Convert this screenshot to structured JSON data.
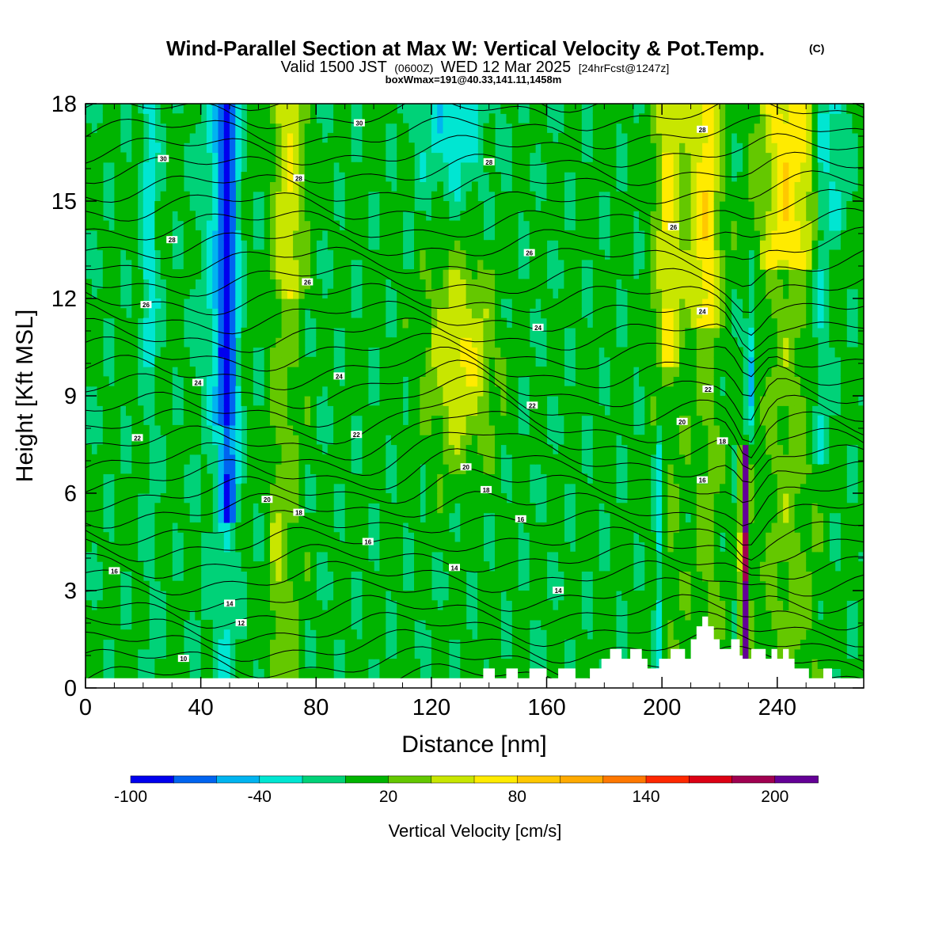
{
  "chart_data": {
    "type": "heatmap",
    "title": "Wind-Parallel Section at Max W: Vertical Velocity & Pot.Temp.",
    "title_mark": "(C)",
    "subtitle_parts": [
      "Valid 1500 JST",
      "(0600Z)",
      "WED 12 Mar 2025",
      "[24hrFcst@1247z]"
    ],
    "subtitle2": "boxWmax=191@40.33,141.11,1458m",
    "xlabel": "Distance [nm]",
    "ylabel": "Height [Kft MSL]",
    "xlim": [
      0,
      270
    ],
    "ylim": [
      0,
      18
    ],
    "x_ticks": [
      "0",
      "40",
      "80",
      "120",
      "160",
      "200",
      "240"
    ],
    "y_ticks": [
      "0",
      "3",
      "6",
      "9",
      "12",
      "15",
      "18"
    ],
    "colorbar": {
      "label": "Vertical Velocity [cm/s]",
      "tick_labels": [
        "-100",
        "-40",
        "20",
        "80",
        "140",
        "200"
      ],
      "tick_values": [
        -100,
        -40,
        20,
        80,
        140,
        200
      ],
      "levels": [
        -100,
        -80,
        -60,
        -40,
        -20,
        0,
        20,
        40,
        60,
        80,
        100,
        120,
        140,
        160,
        180,
        200,
        220
      ],
      "colors": [
        "#0000ee",
        "#0064f0",
        "#00b4f0",
        "#00e6d2",
        "#00d278",
        "#00b400",
        "#64c800",
        "#c8e600",
        "#ffeb00",
        "#ffc800",
        "#ffaa00",
        "#ff7800",
        "#ff2800",
        "#dc0014",
        "#a00050",
        "#640096"
      ]
    },
    "field": {
      "description_bands_x": [
        {
          "x": [
            46,
            54
          ],
          "value": -80
        },
        {
          "x": [
            40,
            46
          ],
          "value": -40
        },
        {
          "x": [
            66,
            76
          ],
          "value": 60
        },
        {
          "x": [
            120,
            140
          ],
          "value": 40
        },
        {
          "x": [
            198,
            208
          ],
          "value": 60
        },
        {
          "x": [
            210,
            222
          ],
          "value": 70
        },
        {
          "x": [
            228,
            230
          ],
          "value": 190
        },
        {
          "x": [
            232,
            256
          ],
          "value": 70
        }
      ]
    },
    "theta_contours": {
      "labels": [
        {
          "text": "10",
          "x": 34,
          "y": 0.9
        },
        {
          "text": "12",
          "x": 54,
          "y": 2.0
        },
        {
          "text": "14",
          "x": 50,
          "y": 2.6
        },
        {
          "text": "14",
          "x": 128,
          "y": 3.7
        },
        {
          "text": "14",
          "x": 164,
          "y": 3.0
        },
        {
          "text": "16",
          "x": 10,
          "y": 3.6
        },
        {
          "text": "16",
          "x": 98,
          "y": 4.5
        },
        {
          "text": "16",
          "x": 151,
          "y": 5.2
        },
        {
          "text": "16",
          "x": 214,
          "y": 6.4
        },
        {
          "text": "18",
          "x": 74,
          "y": 5.4
        },
        {
          "text": "18",
          "x": 139,
          "y": 6.1
        },
        {
          "text": "18",
          "x": 221,
          "y": 7.6
        },
        {
          "text": "20",
          "x": 63,
          "y": 5.8
        },
        {
          "text": "20",
          "x": 132,
          "y": 6.8
        },
        {
          "text": "20",
          "x": 207,
          "y": 8.2
        },
        {
          "text": "22",
          "x": 18,
          "y": 7.7
        },
        {
          "text": "22",
          "x": 94,
          "y": 7.8
        },
        {
          "text": "22",
          "x": 155,
          "y": 8.7
        },
        {
          "text": "22",
          "x": 216,
          "y": 9.2
        },
        {
          "text": "24",
          "x": 39,
          "y": 9.4
        },
        {
          "text": "24",
          "x": 88,
          "y": 9.6
        },
        {
          "text": "24",
          "x": 157,
          "y": 11.1
        },
        {
          "text": "24",
          "x": 214,
          "y": 11.6
        },
        {
          "text": "26",
          "x": 21,
          "y": 11.8
        },
        {
          "text": "26",
          "x": 77,
          "y": 12.5
        },
        {
          "text": "26",
          "x": 154,
          "y": 13.4
        },
        {
          "text": "26",
          "x": 204,
          "y": 14.2
        },
        {
          "text": "28",
          "x": 30,
          "y": 13.8
        },
        {
          "text": "28",
          "x": 74,
          "y": 15.7
        },
        {
          "text": "28",
          "x": 140,
          "y": 16.2
        },
        {
          "text": "28",
          "x": 214,
          "y": 17.2
        },
        {
          "text": "30",
          "x": 27,
          "y": 16.3
        },
        {
          "text": "30",
          "x": 95,
          "y": 17.4
        }
      ]
    }
  }
}
